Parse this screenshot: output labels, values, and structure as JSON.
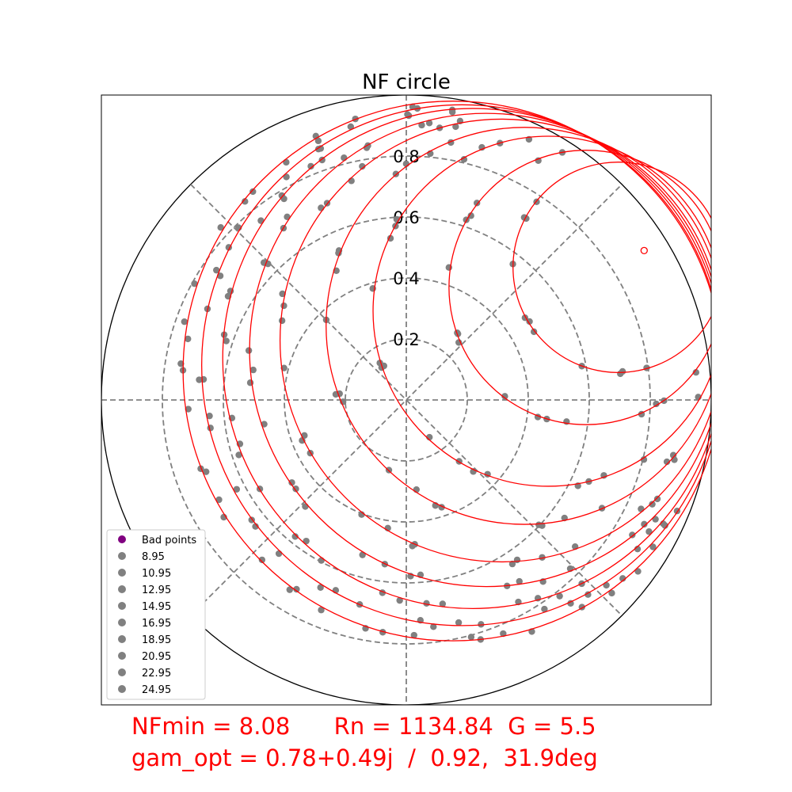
{
  "chart_data": {
    "type": "scatter",
    "title": "NF circle",
    "radial_ticks": [
      "0.2",
      "0.4",
      "0.6",
      "0.8"
    ],
    "radial_tick_values": [
      0.2,
      0.4,
      0.6,
      0.8
    ],
    "axis_range": [
      -1,
      1
    ],
    "grid": true,
    "legend_placement": "lower-left",
    "legend": [
      {
        "label": "Bad points",
        "color": "#800080"
      },
      {
        "label": "8.95",
        "color": "#808080"
      },
      {
        "label": "10.95",
        "color": "#808080"
      },
      {
        "label": "12.95",
        "color": "#808080"
      },
      {
        "label": "14.95",
        "color": "#808080"
      },
      {
        "label": "16.95",
        "color": "#808080"
      },
      {
        "label": "18.95",
        "color": "#808080"
      },
      {
        "label": "20.95",
        "color": "#808080"
      },
      {
        "label": "22.95",
        "color": "#808080"
      },
      {
        "label": "24.95",
        "color": "#808080"
      }
    ],
    "nf_circles": [
      {
        "center": [
          0.695,
          0.435
        ],
        "radius": 0.345
      },
      {
        "center": [
          0.59,
          0.369
        ],
        "radius": 0.45
      },
      {
        "center": [
          0.465,
          0.291
        ],
        "radius": 0.574
      },
      {
        "center": [
          0.388,
          0.243
        ],
        "radius": 0.651
      },
      {
        "center": [
          0.312,
          0.195
        ],
        "radius": 0.726
      },
      {
        "center": [
          0.262,
          0.164
        ],
        "radius": 0.776
      },
      {
        "center": [
          0.218,
          0.136
        ],
        "radius": 0.82
      },
      {
        "center": [
          0.183,
          0.114
        ],
        "radius": 0.854
      },
      {
        "center": [
          0.153,
          0.095
        ],
        "radius": 0.885
      }
    ],
    "gam_opt_marker": [
      0.78,
      0.49
    ],
    "colors": {
      "points": "#808080",
      "bad": "#800080",
      "circles": "#ff0000",
      "grid": "#808080",
      "frame": "#000000"
    }
  },
  "footer": {
    "line1": "NFmin = 8.08      Rn = 1134.84  G = 5.5",
    "line2": "gam_opt = 0.78+0.49j  /  0.92,  31.9deg"
  }
}
